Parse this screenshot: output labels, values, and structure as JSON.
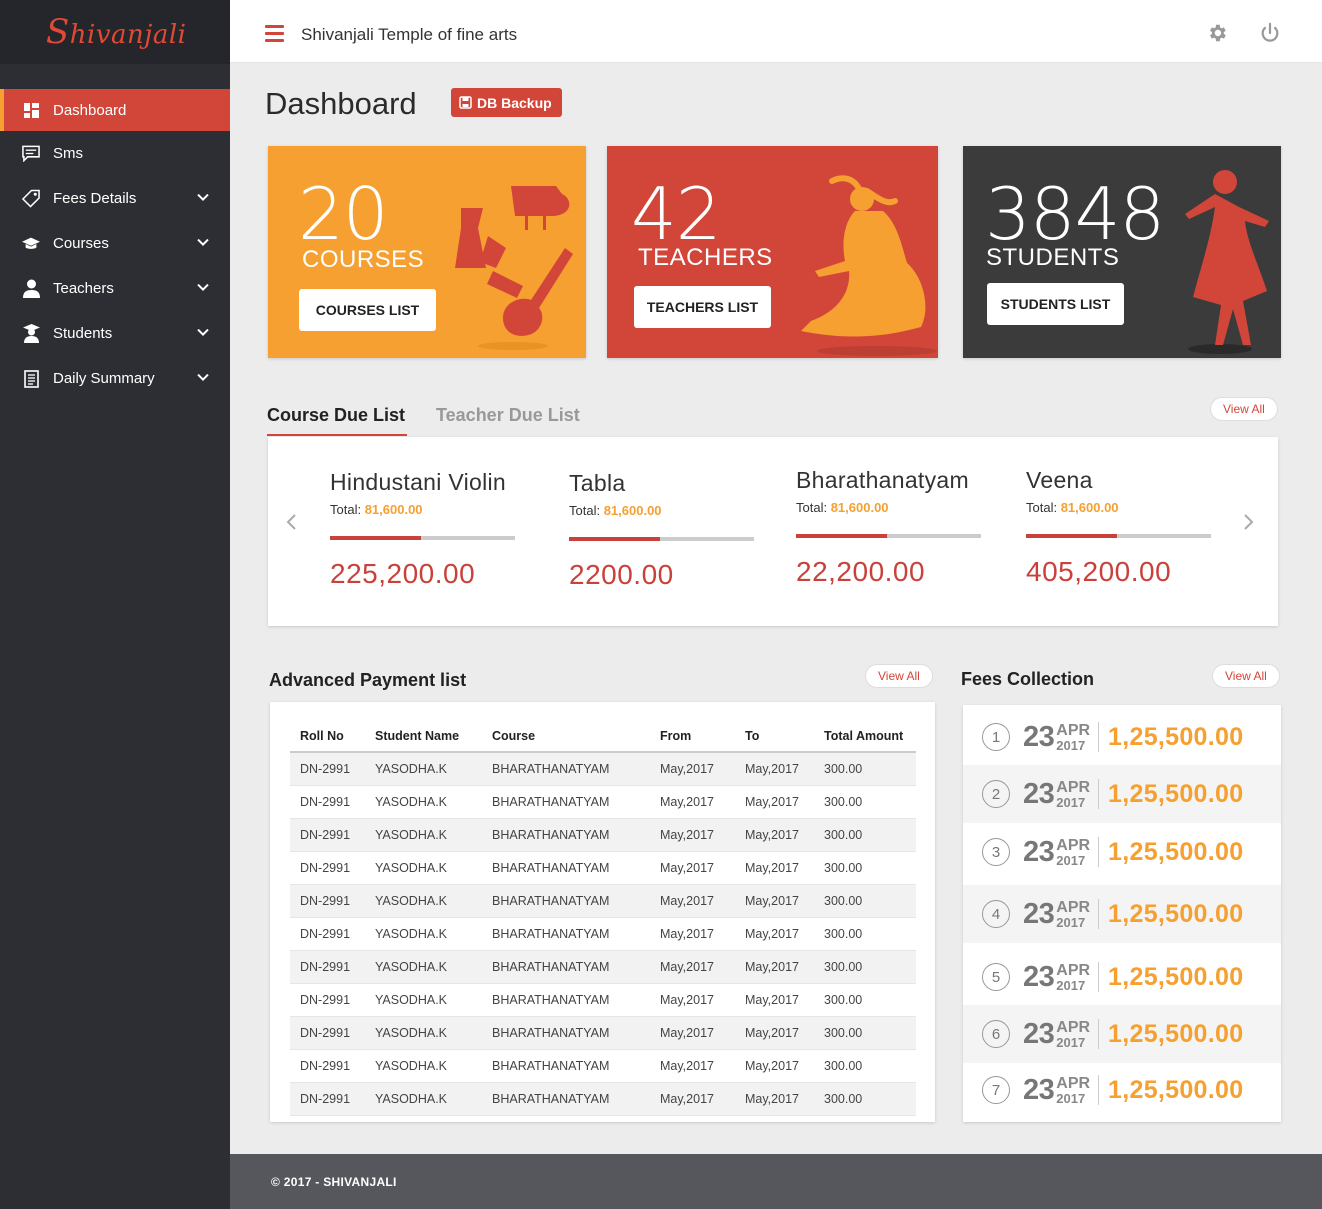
{
  "brand": {
    "logo_text_first": "S",
    "logo_text_rest": "hivanjali",
    "logo_color": "#e04a35"
  },
  "header": {
    "title": "Shivanjali Temple of fine arts",
    "settings_icon": "gear-icon",
    "power_icon": "power-icon"
  },
  "sidebar": {
    "items": [
      {
        "label": "Dashboard",
        "icon": "dashboard-icon",
        "active": true,
        "has_chevron": false
      },
      {
        "label": "Sms",
        "icon": "sms-icon",
        "has_chevron": false
      },
      {
        "label": "Fees Details",
        "icon": "tag-icon",
        "has_chevron": true
      },
      {
        "label": "Courses",
        "icon": "graduation-cap-icon",
        "has_chevron": true
      },
      {
        "label": "Teachers",
        "icon": "teacher-icon",
        "has_chevron": true
      },
      {
        "label": "Students",
        "icon": "student-icon",
        "has_chevron": true
      },
      {
        "label": "Daily Summary",
        "icon": "document-icon",
        "has_chevron": true
      }
    ]
  },
  "page": {
    "title": "Dashboard",
    "db_backup_label": "DB Backup"
  },
  "cards": [
    {
      "number": "20",
      "label": "COURSES",
      "button": "COURSES LIST",
      "color": "#f5a030"
    },
    {
      "number": "42",
      "label": "TEACHERS",
      "button": "TEACHERS LIST",
      "color": "#d2463a"
    },
    {
      "number": "3848",
      "label": "STUDENTS",
      "button": "STUDENTS LIST",
      "color": "#3b3b3b"
    }
  ],
  "due": {
    "tabs": [
      "Course Due List",
      "Teacher Due List"
    ],
    "view_all": "View All",
    "items": [
      {
        "name": "Hindustani Violin",
        "total_label": "Total:",
        "total": "81,600.00",
        "amount": "225,200.00",
        "progress": 0.49
      },
      {
        "name": "Tabla",
        "total_label": "Total:",
        "total": "81,600.00",
        "amount": "2200.00",
        "progress": 0.49
      },
      {
        "name": "Bharathanatyam",
        "total_label": "Total:",
        "total": "81,600.00",
        "amount": "22,200.00",
        "progress": 0.49
      },
      {
        "name": "Veena",
        "total_label": "Total:",
        "total": "81,600.00",
        "amount": "405,200.00",
        "progress": 0.49
      }
    ]
  },
  "advanced": {
    "title": "Advanced Payment list",
    "view_all": "View All",
    "columns": [
      "Roll No",
      "Student Name",
      "Course",
      "From",
      "To",
      "Total Amount"
    ],
    "rows": [
      [
        "DN-2991",
        "YASODHA.K",
        "BHARATHANATYAM",
        "May,2017",
        "May,2017",
        "300.00"
      ],
      [
        "DN-2991",
        "YASODHA.K",
        "BHARATHANATYAM",
        "May,2017",
        "May,2017",
        "300.00"
      ],
      [
        "DN-2991",
        "YASODHA.K",
        "BHARATHANATYAM",
        "May,2017",
        "May,2017",
        "300.00"
      ],
      [
        "DN-2991",
        "YASODHA.K",
        "BHARATHANATYAM",
        "May,2017",
        "May,2017",
        "300.00"
      ],
      [
        "DN-2991",
        "YASODHA.K",
        "BHARATHANATYAM",
        "May,2017",
        "May,2017",
        "300.00"
      ],
      [
        "DN-2991",
        "YASODHA.K",
        "BHARATHANATYAM",
        "May,2017",
        "May,2017",
        "300.00"
      ],
      [
        "DN-2991",
        "YASODHA.K",
        "BHARATHANATYAM",
        "May,2017",
        "May,2017",
        "300.00"
      ],
      [
        "DN-2991",
        "YASODHA.K",
        "BHARATHANATYAM",
        "May,2017",
        "May,2017",
        "300.00"
      ],
      [
        "DN-2991",
        "YASODHA.K",
        "BHARATHANATYAM",
        "May,2017",
        "May,2017",
        "300.00"
      ],
      [
        "DN-2991",
        "YASODHA.K",
        "BHARATHANATYAM",
        "May,2017",
        "May,2017",
        "300.00"
      ],
      [
        "DN-2991",
        "YASODHA.K",
        "BHARATHANATYAM",
        "May,2017",
        "May,2017",
        "300.00"
      ]
    ]
  },
  "fees": {
    "title": "Fees Collection",
    "view_all": "View All",
    "rows": [
      {
        "idx": "1",
        "day": "23",
        "month": "APR",
        "year": "2017",
        "amount": "1,25,500.00"
      },
      {
        "idx": "2",
        "day": "23",
        "month": "APR",
        "year": "2017",
        "amount": "1,25,500.00"
      },
      {
        "idx": "3",
        "day": "23",
        "month": "APR",
        "year": "2017",
        "amount": "1,25,500.00"
      },
      {
        "idx": "4",
        "day": "23",
        "month": "APR",
        "year": "2017",
        "amount": "1,25,500.00"
      },
      {
        "idx": "5",
        "day": "23",
        "month": "APR",
        "year": "2017",
        "amount": "1,25,500.00"
      },
      {
        "idx": "6",
        "day": "23",
        "month": "APR",
        "year": "2017",
        "amount": "1,25,500.00"
      },
      {
        "idx": "7",
        "day": "23",
        "month": "APR",
        "year": "2017",
        "amount": "1,25,500.00"
      }
    ]
  },
  "footer": {
    "text": "© 2017 - SHIVANJALI"
  }
}
